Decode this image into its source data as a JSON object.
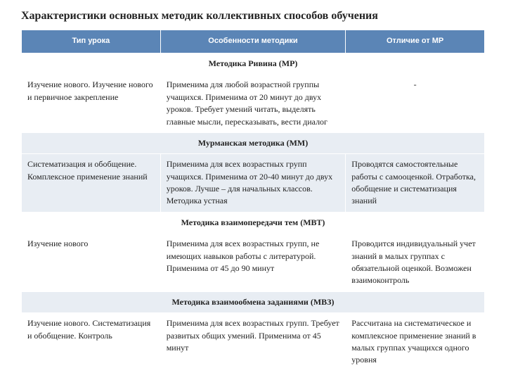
{
  "title": "Характеристики основных методик коллективных способов обучения",
  "headers": {
    "col1": "Тип урока",
    "col2": "Особенности методики",
    "col3": "Отличие от МР"
  },
  "sections": [
    {
      "title": "Методика Ривина (МР)",
      "alt": false,
      "row_alt": false,
      "row": {
        "c1": "Изучение нового. Изучение нового и первичное закрепление",
        "c2": "Применима для любой возрастной группы учащихся. Применима от 20 минут до двух уроков. Требует умений читать, выделять главные мысли, пересказывать, вести диалог",
        "c3": "-",
        "c3_center": true
      }
    },
    {
      "title": "Мурманская методика (ММ)",
      "alt": true,
      "row_alt": true,
      "row": {
        "c1": "Систематизация и обобщение. Комплексное применение знаний",
        "c2": "Применима для всех возрастных групп учащихся. Применима от 20-40 минут до двух уроков. Лучше – для начальных классов. Методика устная",
        "c3": "Проводятся самостоятельные работы с самооценкой. Отработка, обобщение и систематизация знаний",
        "c3_center": false
      }
    },
    {
      "title": "Методика взаимопередачи тем (МВТ)",
      "alt": false,
      "row_alt": false,
      "row": {
        "c1": "Изучение нового",
        "c2": "Применима для всех возрастных групп, не имеющих навыков работы с литературой. Применима от 45 до 90 минут",
        "c3": " Проводится индивидуальный учет знаний в малых группах с обязательной оценкой. Возможен взаимоконтроль",
        "c3_center": false
      }
    },
    {
      "title": "Методика взаимообмена заданиями (МВЗ)",
      "alt": true,
      "row_alt": false,
      "row": {
        "c1": "Изучение нового. Систематизация и обобщение. Контроль",
        "c2": "Применима для всех возрастных групп. Требует развитых общих умений. Применима от 45 минут",
        "c3": "Рассчитана на систематическое и комплексное применение знаний в малых группах учащихся одного уровня",
        "c3_center": false
      }
    }
  ],
  "colors": {
    "header_bg": "#5b85b6",
    "alt_bg": "#e8edf3",
    "plain_bg": "#ffffff"
  }
}
